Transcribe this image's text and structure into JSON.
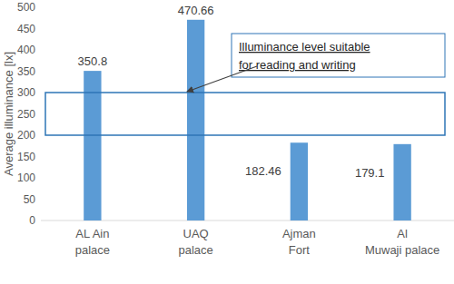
{
  "chart_data": {
    "type": "bar",
    "y_label": "Average illuminance [lx]",
    "categories": [
      "AL Ain palace",
      "UAQ palace",
      "Ajman Fort",
      "Al Muwaji palace"
    ],
    "values": [
      350.8,
      470.66,
      182.46,
      179.1
    ],
    "color": "#5b9bd5",
    "ylim": [
      0,
      500
    ],
    "yticks": [
      0,
      50,
      100,
      150,
      200,
      250,
      300,
      350,
      400,
      450,
      500
    ],
    "grid": false,
    "data_labels": true,
    "annotation": {
      "text": "Illuminance level suitable for reading and writing",
      "range": [
        200,
        300
      ]
    }
  }
}
